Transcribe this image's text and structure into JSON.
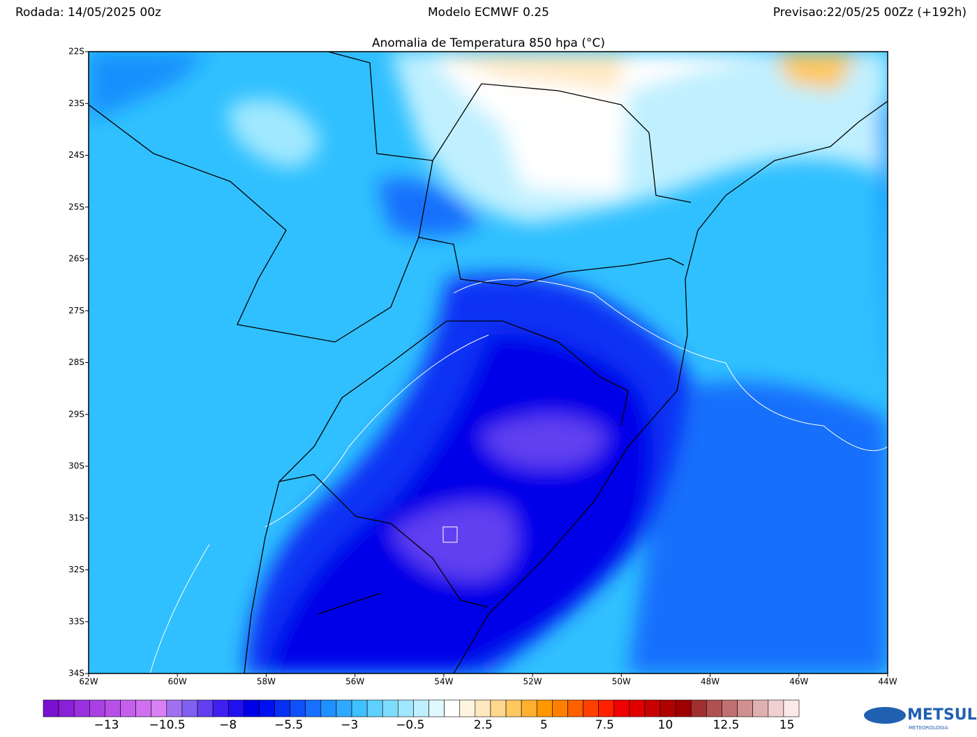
{
  "header": {
    "run": "Rodada: 14/05/2025 00z",
    "model": "Modelo ECMWF 0.25",
    "forecast": "Previsao:22/05/25 00Zz (+192h)",
    "title": "Anomalia de Temperatura 850 hpa (°C)"
  },
  "map": {
    "xlim": [
      -62,
      -44
    ],
    "ylim": [
      -34,
      -22
    ],
    "xticks": [
      {
        "value": -62,
        "label": "62W"
      },
      {
        "value": -60,
        "label": "60W"
      },
      {
        "value": -58,
        "label": "58W"
      },
      {
        "value": -56,
        "label": "56W"
      },
      {
        "value": -54,
        "label": "54W"
      },
      {
        "value": -52,
        "label": "52W"
      },
      {
        "value": -50,
        "label": "50W"
      },
      {
        "value": -48,
        "label": "48W"
      },
      {
        "value": -46,
        "label": "46W"
      },
      {
        "value": -44,
        "label": "44W"
      }
    ],
    "yticks": [
      {
        "value": -22,
        "label": "22S"
      },
      {
        "value": -23,
        "label": "23S"
      },
      {
        "value": -24,
        "label": "24S"
      },
      {
        "value": -25,
        "label": "25S"
      },
      {
        "value": -26,
        "label": "26S"
      },
      {
        "value": -27,
        "label": "27S"
      },
      {
        "value": -28,
        "label": "28S"
      },
      {
        "value": -29,
        "label": "29S"
      },
      {
        "value": -30,
        "label": "30S"
      },
      {
        "value": -31,
        "label": "31S"
      },
      {
        "value": -32,
        "label": "32S"
      },
      {
        "value": -33,
        "label": "33S"
      },
      {
        "value": -34,
        "label": "34S"
      }
    ]
  },
  "colorbar": {
    "lim": [
      -15.6,
      15.5
    ],
    "colors": [
      "#7a10d0",
      "#8a20d8",
      "#9a30e0",
      "#aa40e4",
      "#b850e8",
      "#c460ec",
      "#d070f0",
      "#d880f4",
      "#a070f0",
      "#8060f0",
      "#6040f0",
      "#4020f0",
      "#2010f0",
      "#0000e8",
      "#0010f0",
      "#0830f4",
      "#1050f8",
      "#1870fc",
      "#2090ff",
      "#30a8ff",
      "#40c0ff",
      "#60d0ff",
      "#80dcff",
      "#a0e8ff",
      "#c0f0ff",
      "#e0f8ff",
      "#ffffff",
      "#fff4e0",
      "#ffe8c0",
      "#ffd890",
      "#ffc860",
      "#ffb030",
      "#ff9800",
      "#ff8000",
      "#ff6000",
      "#ff4000",
      "#ff2000",
      "#f00000",
      "#e00000",
      "#c80000",
      "#b00000",
      "#a00000",
      "#a03030",
      "#b05050",
      "#c07070",
      "#d09090",
      "#e0b0b0",
      "#f0d0d0",
      "#fce8e8"
    ],
    "ticks": [
      {
        "value": -13,
        "label": "−13"
      },
      {
        "value": -10.5,
        "label": "−10.5"
      },
      {
        "value": -8,
        "label": "−8"
      },
      {
        "value": -5.5,
        "label": "−5.5"
      },
      {
        "value": -3,
        "label": "−3"
      },
      {
        "value": -0.5,
        "label": "−0.5"
      },
      {
        "value": 2.5,
        "label": "2.5"
      },
      {
        "value": 5,
        "label": "5"
      },
      {
        "value": 7.5,
        "label": "7.5"
      },
      {
        "value": 10,
        "label": "10"
      },
      {
        "value": 12.5,
        "label": "12.5"
      },
      {
        "value": 15,
        "label": "15"
      }
    ]
  },
  "logo": {
    "name": "METSUL",
    "sub": "METEOROLOGIA"
  }
}
